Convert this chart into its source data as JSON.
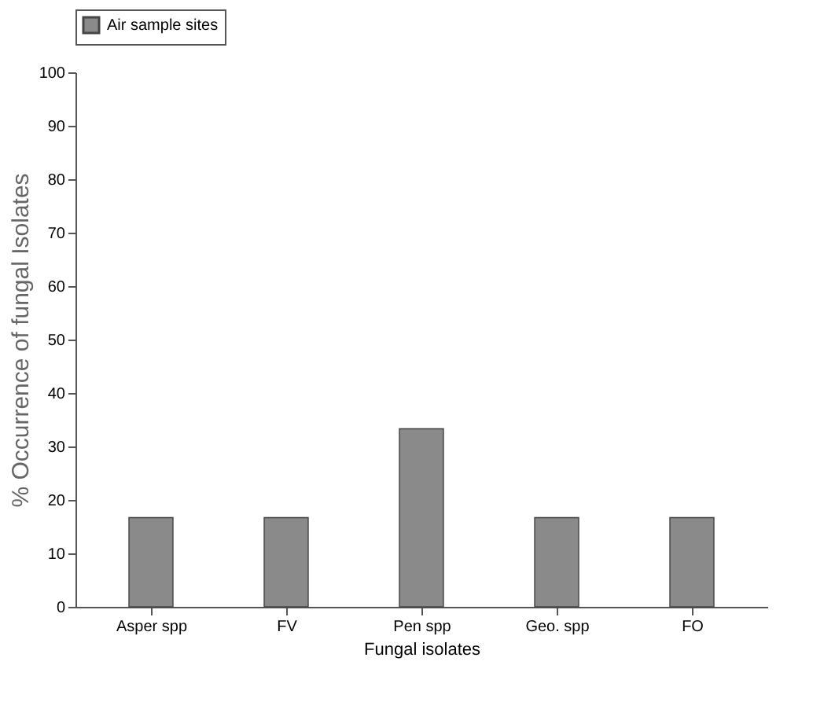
{
  "chart_data": {
    "type": "bar",
    "xlabel": "Fungal isolates",
    "ylabel": "% Occurrence of fungal Isolates",
    "categories": [
      "Asper spp",
      "FV",
      "Pen spp",
      "Geo. spp",
      "FO"
    ],
    "series": [
      {
        "name": "Air sample sites",
        "color": "#8a8a8a",
        "values": [
          16.7,
          16.7,
          33.3,
          16.7,
          16.7
        ]
      }
    ],
    "ylim": [
      0,
      100
    ],
    "yticks": [
      0,
      10,
      20,
      30,
      40,
      50,
      60,
      70,
      80,
      90,
      100
    ],
    "grid": false,
    "legend": "top"
  }
}
